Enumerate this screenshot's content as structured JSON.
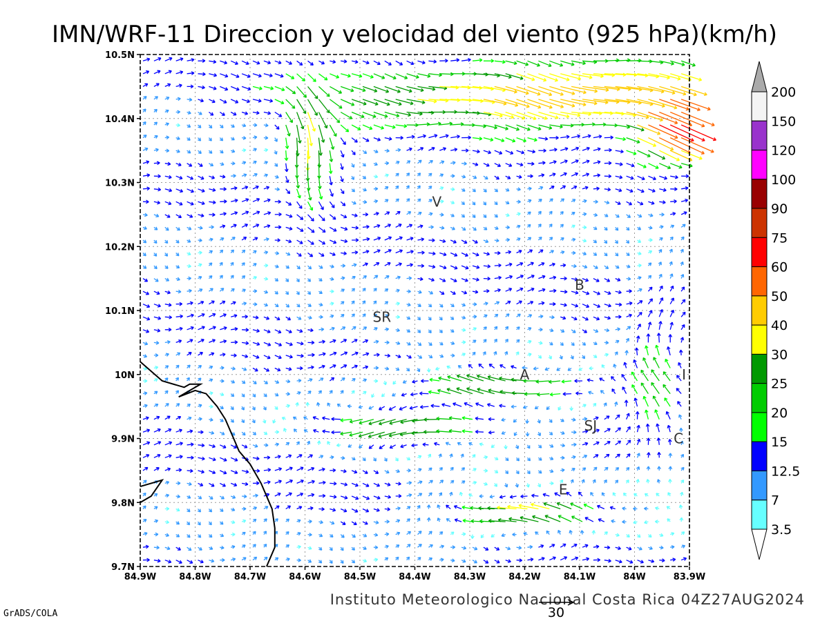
{
  "title": "IMN/WRF-11 Direccion y velocidad del viento (925 hPa)(km/h)",
  "footer": "Instituto Meteorologico Nacional Costa Rica 04Z27AUG2024",
  "credit": "GrADS/COLA",
  "reference_vector": {
    "label": "30",
    "value": 30
  },
  "colorbar": {
    "labels": [
      "200",
      "150",
      "120",
      "100",
      "90",
      "75",
      "60",
      "50",
      "40",
      "30",
      "25",
      "20",
      "15",
      "12.5",
      "7",
      "3.5"
    ],
    "colors": [
      "#f4f4f4",
      "#9933cc",
      "#ff00ff",
      "#990000",
      "#cc3300",
      "#ff0000",
      "#ff6600",
      "#ffcc00",
      "#ffff00",
      "#009900",
      "#00cc00",
      "#00ff00",
      "#0000ff",
      "#3399ff",
      "#66ffff"
    ],
    "top_arrow_color": "#aaaaaa",
    "bottom_arrow_color": "#ffffff"
  },
  "chart_data": {
    "type": "vector-field",
    "x_ticks": [
      {
        "value": -84.9,
        "label": "84.9W"
      },
      {
        "value": -84.8,
        "label": "84.8W"
      },
      {
        "value": -84.7,
        "label": "84.7W"
      },
      {
        "value": -84.6,
        "label": "84.6W"
      },
      {
        "value": -84.5,
        "label": "84.5W"
      },
      {
        "value": -84.4,
        "label": "84.4W"
      },
      {
        "value": -84.3,
        "label": "84.3W"
      },
      {
        "value": -84.2,
        "label": "84.2W"
      },
      {
        "value": -84.1,
        "label": "84.1W"
      },
      {
        "value": -84.0,
        "label": "84W"
      },
      {
        "value": -83.9,
        "label": "83.9W"
      }
    ],
    "y_ticks": [
      {
        "value": 10.5,
        "label": "10.5N"
      },
      {
        "value": 10.4,
        "label": "10.4N"
      },
      {
        "value": 10.3,
        "label": "10.3N"
      },
      {
        "value": 10.2,
        "label": "10.2N"
      },
      {
        "value": 10.1,
        "label": "10.1N"
      },
      {
        "value": 10.0,
        "label": "10N"
      },
      {
        "value": 9.9,
        "label": "9.9N"
      },
      {
        "value": 9.8,
        "label": "9.8N"
      },
      {
        "value": 9.7,
        "label": "9.7N"
      }
    ],
    "xlim": [
      -84.9,
      -83.9
    ],
    "ylim": [
      9.7,
      10.5
    ],
    "grid": true,
    "cities": [
      {
        "label": "V",
        "lon": -84.36,
        "lat": 10.27
      },
      {
        "label": "B",
        "lon": -84.1,
        "lat": 10.14
      },
      {
        "label": "SR",
        "lon": -84.46,
        "lat": 10.09
      },
      {
        "label": "A",
        "lon": -84.2,
        "lat": 10.0
      },
      {
        "label": "I",
        "lon": -83.91,
        "lat": 10.0
      },
      {
        "label": "SJ",
        "lon": -84.08,
        "lat": 9.92
      },
      {
        "label": "C",
        "lon": -83.92,
        "lat": 9.9
      },
      {
        "label": "E",
        "lon": -84.13,
        "lat": 9.82
      }
    ],
    "coastline": [
      [
        -84.9,
        10.02
      ],
      [
        -84.86,
        9.99
      ],
      [
        -84.82,
        9.98
      ],
      [
        -84.81,
        9.985
      ],
      [
        -84.79,
        9.985
      ],
      [
        -84.83,
        9.965
      ],
      [
        -84.8,
        9.975
      ],
      [
        -84.78,
        9.97
      ],
      [
        -84.76,
        9.95
      ],
      [
        -84.745,
        9.93
      ],
      [
        -84.73,
        9.9
      ],
      [
        -84.72,
        9.88
      ],
      [
        -84.7,
        9.86
      ],
      [
        -84.68,
        9.83
      ],
      [
        -84.665,
        9.8
      ],
      [
        -84.66,
        9.79
      ],
      [
        -84.655,
        9.76
      ],
      [
        -84.655,
        9.73
      ],
      [
        -84.67,
        9.7
      ]
    ],
    "coastline_small": [
      [
        -84.9,
        9.825
      ],
      [
        -84.86,
        9.835
      ],
      [
        -84.88,
        9.81
      ],
      [
        -84.9,
        9.8
      ]
    ]
  }
}
